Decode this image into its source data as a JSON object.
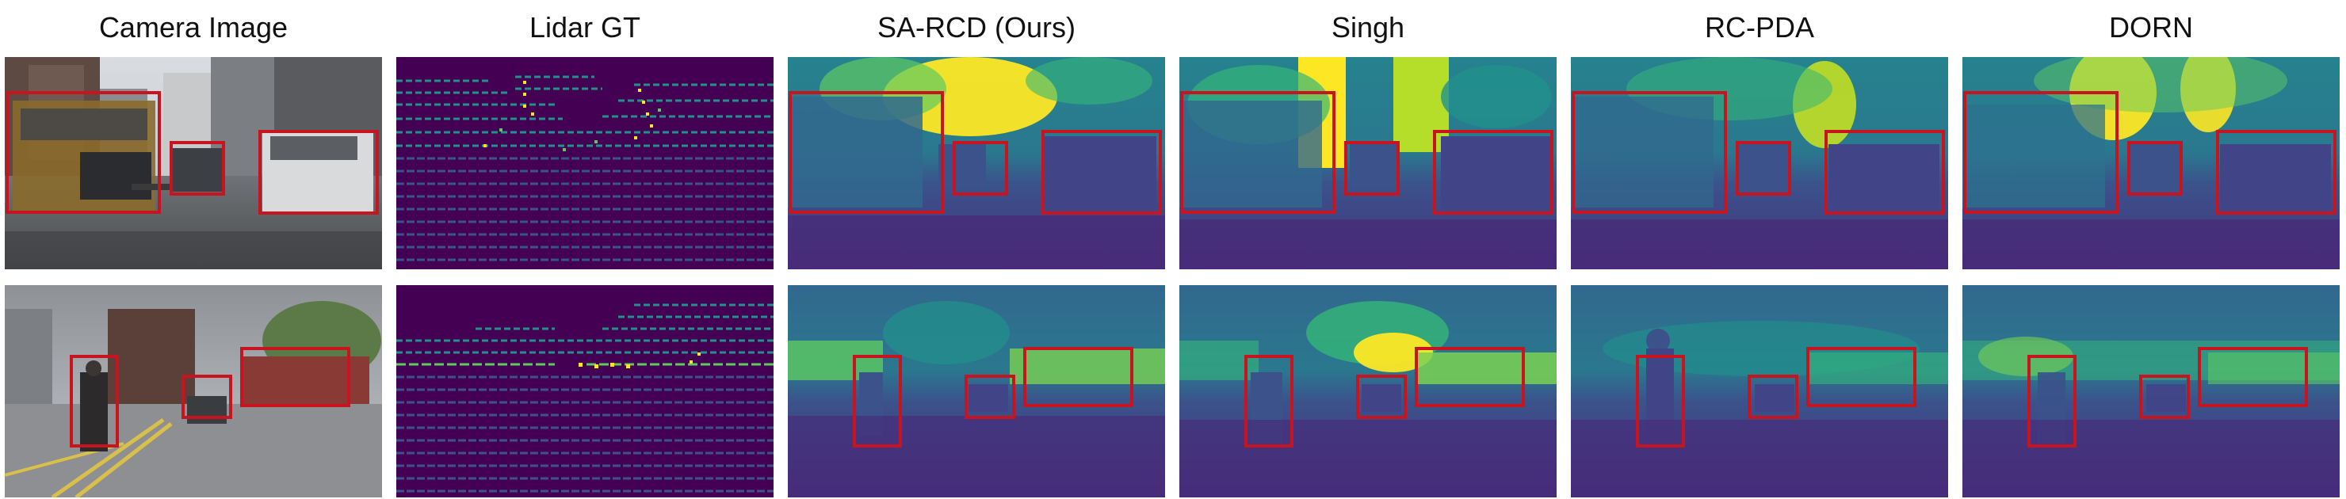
{
  "columns": [
    {
      "key": "camera",
      "title": "Camera Image"
    },
    {
      "key": "lidar",
      "title": "Lidar GT"
    },
    {
      "key": "sarcd",
      "title": "SA-RCD (Ours)"
    },
    {
      "key": "singh",
      "title": "Singh"
    },
    {
      "key": "rcpda",
      "title": "RC-PDA"
    },
    {
      "key": "dorn",
      "title": "DORN"
    }
  ],
  "rows": [
    {
      "key": "street-scene-vehicles"
    },
    {
      "key": "street-scene-pedestrian"
    }
  ],
  "colors": {
    "box": "#c8141e",
    "viridis_dark": "#440154",
    "viridis_blue": "#3b528b",
    "viridis_teal": "#21918c",
    "viridis_green": "#5ec962",
    "viridis_yellow": "#fde725"
  }
}
